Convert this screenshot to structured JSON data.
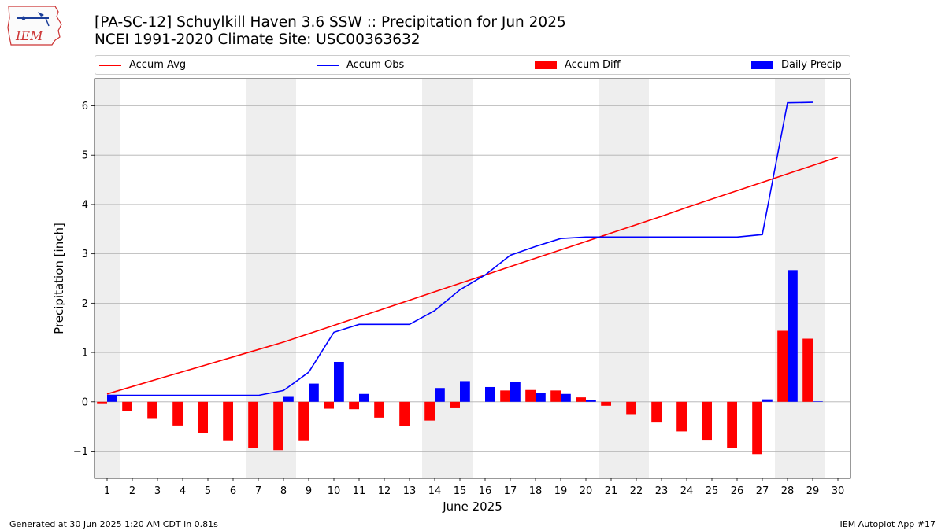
{
  "header": {
    "logo_text": "IEM",
    "title_line1": "[PA-SC-12] Schuylkill Haven 3.6 SSW :: Precipitation for Jun 2025",
    "title_line2": "NCEI 1991-2020 Climate Site: USC00363632"
  },
  "legend": {
    "accum_avg": "Accum Avg",
    "accum_obs": "Accum Obs",
    "accum_diff": "Accum Diff",
    "daily_precip": "Daily Precip"
  },
  "footer": {
    "left": "Generated at 30 Jun 2025 1:20 AM CDT in 0.81s",
    "right": "IEM Autoplot App #17"
  },
  "colors": {
    "accum_avg": "#ff0000",
    "accum_obs": "#0000ff",
    "accum_diff": "#ff0000",
    "daily_precip": "#0000ff",
    "weekend_shade": "#eeeeee",
    "grid": "#b0b0b0"
  },
  "chart_data": {
    "type": "bar",
    "xlabel": "June 2025",
    "ylabel": "Precipitation [inch]",
    "xlim": [
      0.5,
      30.5
    ],
    "ylim": [
      -1.55,
      6.55
    ],
    "yticks": [
      -1,
      0,
      1,
      2,
      3,
      4,
      5,
      6
    ],
    "ytick_labels": [
      "−1",
      "0",
      "1",
      "2",
      "3",
      "4",
      "5",
      "6"
    ],
    "days": [
      1,
      2,
      3,
      4,
      5,
      6,
      7,
      8,
      9,
      10,
      11,
      12,
      13,
      14,
      15,
      16,
      17,
      18,
      19,
      20,
      21,
      22,
      23,
      24,
      25,
      26,
      27,
      28,
      29,
      30
    ],
    "shaded_days": [
      1,
      7,
      8,
      14,
      15,
      21,
      22,
      28,
      29
    ],
    "grid": "horizontal",
    "legend_position": "top",
    "series": [
      {
        "name": "Accum Avg",
        "type": "line",
        "x": [
          1,
          2,
          3,
          4,
          5,
          6,
          7,
          8,
          9,
          10,
          11,
          12,
          13,
          14,
          15,
          16,
          17,
          18,
          19,
          20,
          21,
          22,
          23,
          24,
          25,
          26,
          27,
          28,
          29,
          30
        ],
        "values": [
          0.16,
          0.31,
          0.46,
          0.61,
          0.76,
          0.91,
          1.06,
          1.21,
          1.38,
          1.55,
          1.72,
          1.89,
          2.06,
          2.23,
          2.4,
          2.57,
          2.74,
          2.91,
          3.08,
          3.25,
          3.42,
          3.59,
          3.76,
          3.94,
          4.11,
          4.28,
          4.45,
          4.62,
          4.79,
          4.96
        ]
      },
      {
        "name": "Accum Obs",
        "type": "line",
        "x": [
          1,
          2,
          3,
          4,
          5,
          6,
          7,
          8,
          9,
          10,
          11,
          12,
          13,
          14,
          15,
          16,
          17,
          18,
          19,
          20,
          21,
          22,
          23,
          24,
          25,
          26,
          27,
          28,
          29
        ],
        "values": [
          0.13,
          0.13,
          0.13,
          0.13,
          0.13,
          0.13,
          0.13,
          0.23,
          0.6,
          1.41,
          1.57,
          1.57,
          1.57,
          1.85,
          2.27,
          2.57,
          2.97,
          3.15,
          3.31,
          3.34,
          3.34,
          3.34,
          3.34,
          3.34,
          3.34,
          3.34,
          3.39,
          6.06,
          6.07
        ]
      },
      {
        "name": "Accum Diff",
        "type": "bar",
        "x": [
          1,
          2,
          3,
          4,
          5,
          6,
          7,
          8,
          9,
          10,
          11,
          12,
          13,
          14,
          15,
          16,
          17,
          18,
          19,
          20,
          21,
          22,
          23,
          24,
          25,
          26,
          27,
          28,
          29
        ],
        "values": [
          -0.03,
          -0.18,
          -0.33,
          -0.48,
          -0.63,
          -0.78,
          -0.93,
          -0.98,
          -0.78,
          -0.14,
          -0.15,
          -0.32,
          -0.49,
          -0.38,
          -0.13,
          0.0,
          0.23,
          0.24,
          0.23,
          0.09,
          -0.08,
          -0.25,
          -0.42,
          -0.6,
          -0.77,
          -0.94,
          -1.06,
          1.44,
          1.28
        ]
      },
      {
        "name": "Daily Precip",
        "type": "bar",
        "x": [
          1,
          2,
          3,
          4,
          5,
          6,
          7,
          8,
          9,
          10,
          11,
          12,
          13,
          14,
          15,
          16,
          17,
          18,
          19,
          20,
          21,
          22,
          23,
          24,
          25,
          26,
          27,
          28,
          29
        ],
        "values": [
          0.13,
          0,
          0,
          0,
          0,
          0,
          0,
          0.1,
          0.37,
          0.81,
          0.16,
          0,
          0,
          0.28,
          0.42,
          0.3,
          0.4,
          0.18,
          0.16,
          0.03,
          0,
          0,
          0,
          0,
          0,
          0,
          0.05,
          2.67,
          0.01
        ]
      }
    ]
  }
}
